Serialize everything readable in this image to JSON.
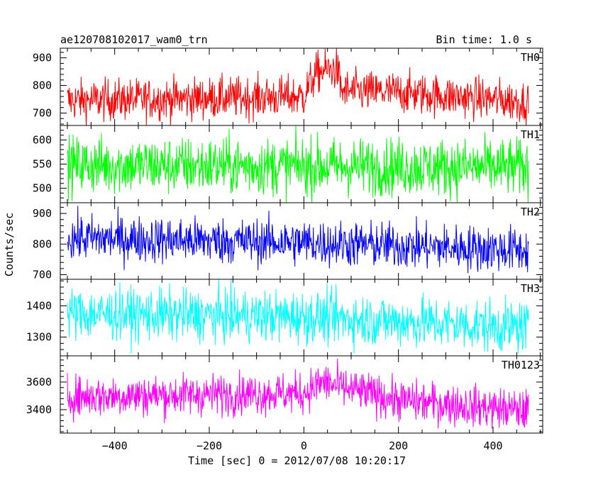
{
  "header": {
    "title": "ae120708102017_wam0_trn",
    "bin_time": "Bin time: 1.0 s"
  },
  "chart_data": {
    "type": "line",
    "title": "ae120708102017_wam0_trn",
    "xlabel": "Time [sec] 0 = 2012/07/08 10:20:17",
    "ylabel": "Counts/sec",
    "xlim": [
      -515,
      505
    ],
    "x_ticks": [
      -400,
      -200,
      0,
      200,
      400
    ],
    "x_tick_labels": [
      "−400",
      "−200",
      "0",
      "200",
      "400"
    ],
    "time_range": [
      -500,
      475
    ],
    "series": [
      {
        "name": "TH0",
        "color": "#ff0000",
        "ylim": [
          655,
          935
        ],
        "y_ticks": [
          700,
          800,
          900
        ],
        "trend": [
          [
            -500,
            745
          ],
          [
            0,
            760
          ],
          [
            10,
            800
          ],
          [
            30,
            850
          ],
          [
            70,
            860
          ],
          [
            80,
            780
          ],
          [
            200,
            775
          ],
          [
            475,
            740
          ]
        ],
        "noise": 38
      },
      {
        "name": "TH1",
        "color": "#00ff00",
        "ylim": [
          470,
          630
        ],
        "y_ticks": [
          500,
          550,
          600
        ],
        "trend": [
          [
            -500,
            548
          ],
          [
            475,
            543
          ]
        ],
        "noise": 30
      },
      {
        "name": "TH2",
        "color": "#0000ff",
        "ylim": [
          685,
          935
        ],
        "y_ticks": [
          700,
          800,
          900
        ],
        "trend": [
          [
            -500,
            820
          ],
          [
            0,
            805
          ],
          [
            475,
            780
          ]
        ],
        "noise": 38
      },
      {
        "name": "TH3",
        "color": "#00ffff",
        "ylim": [
          1240,
          1485
        ],
        "y_ticks": [
          1300,
          1400
        ],
        "trend": [
          [
            -500,
            1375
          ],
          [
            0,
            1365
          ],
          [
            475,
            1330
          ]
        ],
        "noise": 42
      },
      {
        "name": "TH0123",
        "color": "#ff00ff",
        "ylim": [
          3230,
          3790
        ],
        "y_ticks": [
          3400,
          3600
        ],
        "trend": [
          [
            -500,
            3495
          ],
          [
            0,
            3520
          ],
          [
            40,
            3600
          ],
          [
            80,
            3560
          ],
          [
            200,
            3470
          ],
          [
            475,
            3390
          ]
        ],
        "noise": 75
      }
    ]
  }
}
